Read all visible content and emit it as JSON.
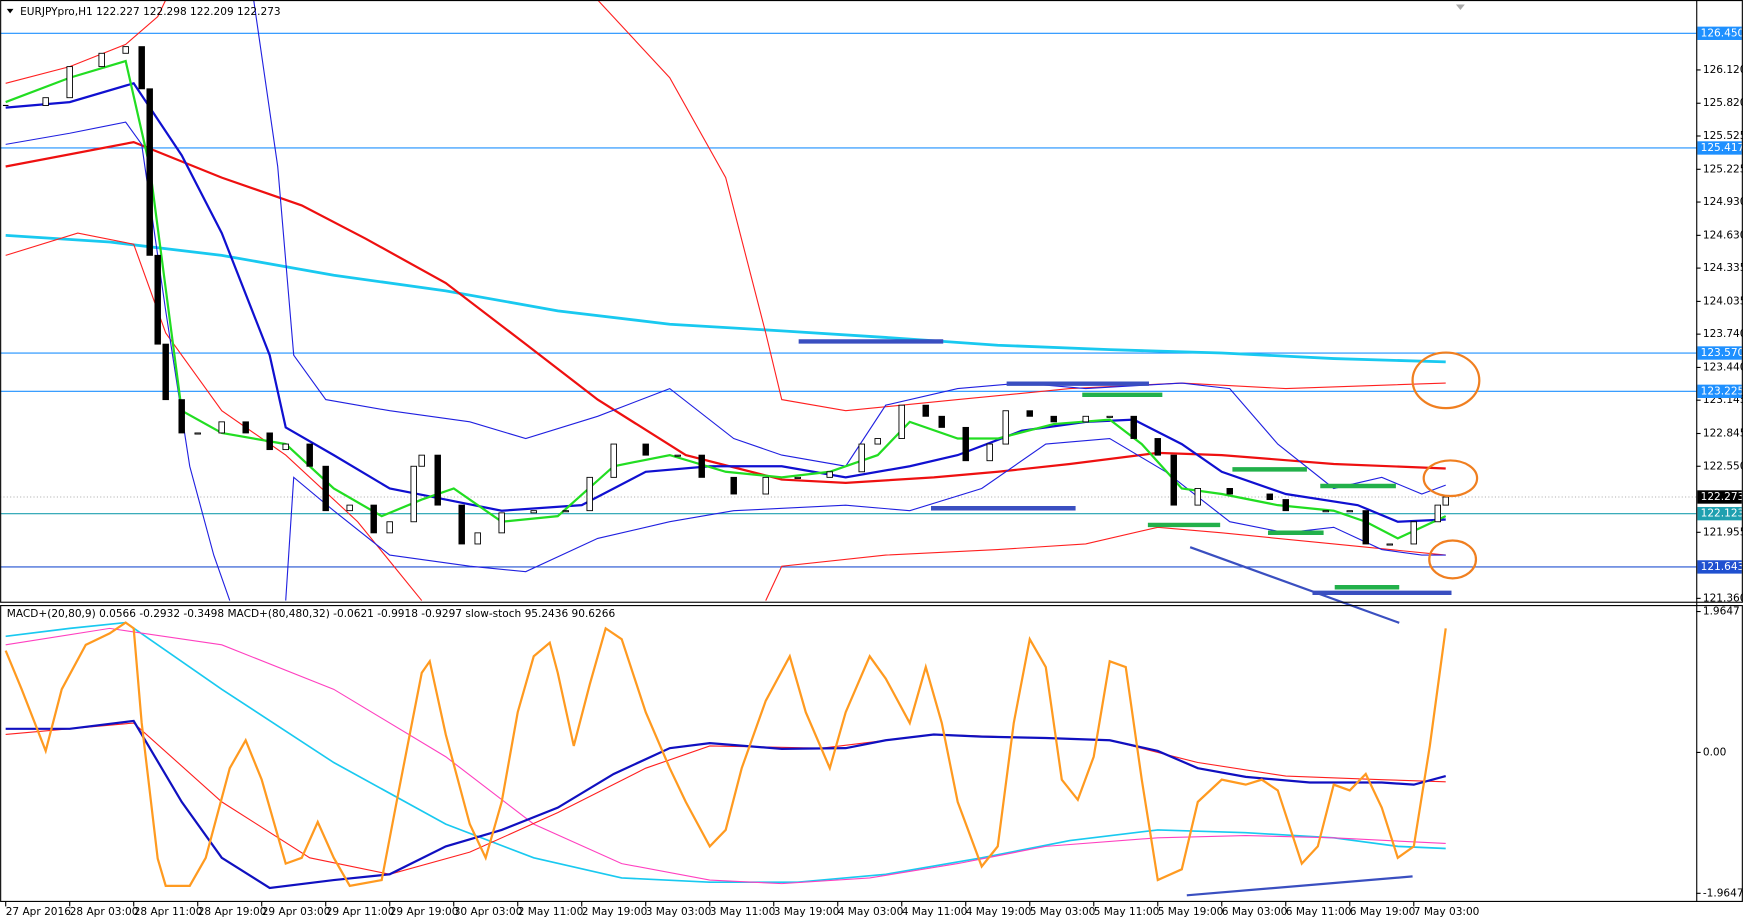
{
  "header": {
    "symbol": "EURJPYpro,H1  122.227 122.298 122.209 122.273"
  },
  "chart_data": [
    {
      "type": "price",
      "xlim": [
        -0.7,
        211.3
      ],
      "ylim": [
        121.33,
        126.75
      ],
      "yticks": [
        {
          "value": 126.12,
          "label": "126.120"
        },
        {
          "value": 125.82,
          "label": "125.820"
        },
        125.525,
        125.225,
        {
          "value": 124.93,
          "label": "124.930"
        },
        {
          "value": 124.63,
          "label": "124.630"
        },
        124.335,
        124.035,
        {
          "value": 123.74,
          "label": "123.740"
        },
        {
          "value": 123.44,
          "label": "123.440"
        },
        123.145,
        122.845,
        {
          "value": 122.55,
          "label": "122.550"
        },
        121.955,
        {
          "value": 121.36,
          "label": "121.360"
        }
      ],
      "levels": [
        {
          "value": 126.45,
          "label": "126.450",
          "color": "#1e90ff"
        },
        {
          "value": 125.417,
          "label": "125.417",
          "color": "#1e90ff"
        },
        {
          "value": 123.57,
          "label": "123.570",
          "color": "#1e90ff"
        },
        {
          "value": 123.225,
          "label": "123.225",
          "color": "#1e90ff"
        },
        {
          "value": 122.123,
          "label": "122.123",
          "color": "#1fa0b0"
        },
        {
          "value": 121.643,
          "label": "121.643",
          "color": "#2050d0"
        }
      ],
      "current": {
        "value": 122.273,
        "label": "122.273"
      },
      "x": [
        0,
        5,
        8,
        12,
        15,
        17,
        18,
        19,
        20,
        22,
        24,
        27,
        30,
        33,
        35,
        38,
        40,
        43,
        46,
        48,
        51,
        52,
        54,
        57,
        59,
        62,
        66,
        70,
        73,
        76,
        80,
        84,
        87,
        91,
        95,
        99,
        103,
        107,
        109,
        112,
        115,
        117,
        120,
        123,
        125,
        128,
        131,
        135,
        138,
        141,
        144,
        146,
        149,
        153,
        158,
        160,
        165,
        168,
        170,
        173,
        176,
        179,
        180
      ],
      "closes": [
        125.8,
        125.87,
        126.15,
        126.27,
        126.33,
        125.95,
        124.45,
        123.65,
        123.15,
        122.85,
        122.85,
        122.95,
        122.85,
        122.7,
        122.75,
        122.55,
        122.15,
        122.2,
        121.95,
        122.05,
        122.55,
        122.65,
        122.2,
        121.85,
        121.95,
        122.13,
        122.15,
        122.15,
        122.45,
        122.75,
        122.65,
        122.65,
        122.45,
        122.3,
        122.45,
        122.45,
        122.5,
        122.75,
        122.8,
        123.1,
        123.0,
        122.9,
        122.6,
        122.75,
        123.05,
        123.0,
        122.95,
        123.0,
        123.0,
        122.8,
        122.65,
        122.2,
        122.35,
        122.3,
        122.25,
        122.15,
        122.15,
        122.15,
        121.85,
        121.85,
        122.05,
        122.2,
        122.273
      ],
      "series": [
        {
          "color": "#19c9f0",
          "width": 2.5,
          "x": [
            0,
            13,
            27,
            41,
            55,
            69,
            83,
            97,
            110,
            124,
            138,
            152,
            166,
            180
          ],
          "values": [
            124.63,
            124.57,
            124.45,
            124.27,
            124.13,
            123.95,
            123.83,
            123.77,
            123.71,
            123.64,
            123.6,
            123.57,
            123.52,
            123.49
          ]
        },
        {
          "color": "#ee1010",
          "width": 2,
          "x": [
            0,
            16,
            27,
            37,
            45,
            55,
            65,
            74,
            85,
            97,
            105,
            116,
            124,
            133,
            144,
            152,
            166,
            180
          ],
          "values": [
            125.25,
            125.47,
            125.15,
            124.9,
            124.6,
            124.2,
            123.65,
            123.15,
            122.65,
            122.43,
            122.4,
            122.45,
            122.5,
            122.57,
            122.67,
            122.65,
            122.57,
            122.53
          ]
        },
        {
          "color": "#ff2020",
          "width": 1,
          "x": [
            0,
            8,
            15,
            19,
            20,
            40,
            74,
            83,
            90,
            95,
            97,
            105,
            119,
            133,
            147,
            160,
            180
          ],
          "values": [
            126.0,
            126.15,
            126.35,
            126.6,
            126.75,
            null,
            126.75,
            126.05,
            125.15,
            123.75,
            123.15,
            123.05,
            123.15,
            123.25,
            123.3,
            123.25,
            123.3
          ]
        },
        {
          "color": "#ff2020",
          "width": 1,
          "x": [
            0,
            9,
            16,
            20,
            27,
            35,
            44,
            52,
            70,
            95,
            97,
            110,
            124,
            135,
            144,
            152,
            166,
            180
          ],
          "values": [
            124.45,
            124.65,
            124.55,
            123.75,
            123.05,
            122.65,
            122.05,
            121.34,
            null,
            121.34,
            121.65,
            121.75,
            121.8,
            121.85,
            122.0,
            121.95,
            121.85,
            121.75
          ]
        },
        {
          "color": "#2020e0",
          "width": 1,
          "x": [
            31,
            34,
            36,
            40,
            48,
            58,
            65,
            74,
            83,
            91,
            97,
            105,
            110,
            119,
            127,
            135,
            147,
            153,
            159,
            166,
            172,
            177,
            180
          ],
          "values": [
            126.75,
            125.25,
            123.55,
            123.15,
            123.05,
            122.95,
            122.8,
            123.0,
            123.25,
            122.8,
            122.65,
            122.55,
            123.1,
            123.25,
            123.3,
            123.25,
            123.3,
            123.25,
            122.75,
            122.35,
            122.45,
            122.3,
            122.38
          ]
        },
        {
          "color": "#2020e0",
          "width": 1,
          "x": [
            0,
            8,
            15,
            17,
            20,
            23,
            26,
            28,
            31,
            35,
            36,
            41,
            48,
            58,
            65,
            74,
            83,
            91,
            105,
            113,
            122,
            130,
            138,
            145,
            153,
            160,
            166,
            172,
            177,
            180
          ],
          "values": [
            125.45,
            125.55,
            125.65,
            125.45,
            123.95,
            122.55,
            121.75,
            121.34,
            null,
            121.34,
            122.45,
            122.15,
            121.75,
            121.65,
            121.6,
            121.9,
            122.05,
            122.15,
            122.2,
            122.15,
            122.35,
            122.75,
            122.8,
            122.5,
            122.05,
            121.95,
            122.0,
            121.8,
            121.75,
            121.75
          ]
        },
        {
          "color": "#1010d0",
          "width": 2,
          "x": [
            0,
            8,
            16,
            22,
            27,
            33,
            35,
            41,
            48,
            55,
            62,
            72,
            80,
            88,
            97,
            105,
            113,
            119,
            127,
            135,
            141,
            147,
            152,
            160,
            169,
            174,
            180
          ],
          "values": [
            125.78,
            125.83,
            126.0,
            125.35,
            124.65,
            123.55,
            122.9,
            122.65,
            122.35,
            122.25,
            122.15,
            122.2,
            122.5,
            122.55,
            122.55,
            122.45,
            122.55,
            122.65,
            122.87,
            122.95,
            122.97,
            122.75,
            122.5,
            122.3,
            122.2,
            122.05,
            122.07
          ]
        },
        {
          "color": "#22dd22",
          "width": 2,
          "x": [
            0,
            8,
            15,
            18,
            22,
            27,
            35,
            41,
            47,
            52,
            56,
            62,
            69,
            76,
            83,
            90,
            97,
            103,
            109,
            113,
            119,
            124,
            131,
            138,
            142,
            147,
            152,
            159,
            166,
            170,
            174,
            180
          ],
          "values": [
            125.83,
            126.05,
            126.2,
            125.25,
            123.05,
            122.85,
            122.75,
            122.35,
            122.1,
            122.25,
            122.35,
            122.05,
            122.1,
            122.55,
            122.65,
            122.5,
            122.45,
            122.5,
            122.65,
            122.95,
            122.8,
            122.8,
            122.93,
            122.97,
            122.75,
            122.35,
            122.3,
            122.2,
            122.15,
            122.05,
            121.9,
            122.1
          ]
        }
      ]
    },
    {
      "type": "indicator",
      "title": "MACD+(20,80,9) 0.0566 -0.2932 -0.3498  MACD+(80,480,32) -0.0621 -0.9918 -0.9297  slow-stoch 95.2436 90.6266",
      "xlim": [
        -0.7,
        211.3
      ],
      "ylim": [
        -2.07,
        2.04
      ],
      "yticks": [
        1.9647,
        {
          "value": 0,
          "label": "0.00"
        },
        -1.9647
      ],
      "xticks": [
        {
          "value": 0,
          "label": "27 Apr 2016"
        },
        {
          "value": 8,
          "label": "28 Apr 03:00"
        },
        {
          "value": 16,
          "label": "28 Apr 11:00"
        },
        {
          "value": 24,
          "label": "28 Apr 19:00"
        },
        {
          "value": 32,
          "label": "29 Apr 03:00"
        },
        {
          "value": 40,
          "label": "29 Apr 11:00"
        },
        {
          "value": 48,
          "label": "29 Apr 19:00"
        },
        {
          "value": 56,
          "label": "30 Apr 03:00"
        },
        {
          "value": 64,
          "label": "2 May 11:00"
        },
        {
          "value": 72,
          "label": "2 May 19:00"
        },
        {
          "value": 80,
          "label": "3 May 03:00"
        },
        {
          "value": 88,
          "label": "3 May 11:00"
        },
        {
          "value": 96,
          "label": "3 May 19:00"
        },
        {
          "value": 104,
          "label": "4 May 03:00"
        },
        {
          "value": 112,
          "label": "4 May 11:00"
        },
        {
          "value": 120,
          "label": "4 May 19:00"
        },
        {
          "value": 128,
          "label": "5 May 03:00"
        },
        {
          "value": 136,
          "label": "5 May 11:00"
        },
        {
          "value": 144,
          "label": "5 May 19:00"
        },
        {
          "value": 152,
          "label": "6 May 03:00"
        },
        {
          "value": 160,
          "label": "6 May 11:00"
        },
        {
          "value": 168,
          "label": "6 May 19:00"
        },
        {
          "value": 176,
          "label": "7 May 03:00"
        }
      ],
      "series": [
        {
          "color": "#19c9f0",
          "width": 1.5,
          "x": [
            0,
            8,
            15,
            27,
            41,
            55,
            66,
            77,
            88,
            99,
            110,
            122,
            133,
            144,
            155,
            166,
            174,
            180
          ],
          "values": [
            1.62,
            1.73,
            1.81,
            0.88,
            -0.14,
            -1.0,
            -1.47,
            -1.75,
            -1.81,
            -1.81,
            -1.7,
            -1.47,
            -1.23,
            -1.08,
            -1.12,
            -1.19,
            -1.31,
            -1.34
          ]
        },
        {
          "color": "#ff40c0",
          "width": 1,
          "x": [
            0,
            13,
            27,
            41,
            55,
            66,
            77,
            88,
            97,
            108,
            119,
            130,
            144,
            155,
            166,
            180
          ],
          "values": [
            1.5,
            1.73,
            1.5,
            0.88,
            -0.06,
            -1.0,
            -1.55,
            -1.78,
            -1.83,
            -1.75,
            -1.55,
            -1.31,
            -1.19,
            -1.16,
            -1.19,
            -1.27
          ]
        },
        {
          "color": "#ff2020",
          "width": 1,
          "x": [
            0,
            16,
            27,
            38,
            48,
            58,
            69,
            80,
            88,
            102,
            116,
            138,
            149,
            160,
            172,
            180
          ],
          "values": [
            0.25,
            0.41,
            -0.69,
            -1.47,
            -1.7,
            -1.39,
            -0.84,
            -0.22,
            0.09,
            0.06,
            0.25,
            0.17,
            -0.14,
            -0.33,
            -0.38,
            -0.41
          ]
        },
        {
          "color": "#1010c0",
          "width": 2,
          "x": [
            0,
            8,
            16,
            22,
            27,
            33,
            41,
            48,
            55,
            62,
            69,
            76,
            83,
            88,
            97,
            105,
            110,
            116,
            122,
            130,
            138,
            144,
            149,
            155,
            163,
            172,
            176,
            180
          ],
          "values": [
            0.33,
            0.33,
            0.44,
            -0.69,
            -1.47,
            -1.89,
            -1.78,
            -1.7,
            -1.31,
            -1.08,
            -0.77,
            -0.3,
            0.06,
            0.13,
            0.05,
            0.06,
            0.17,
            0.25,
            0.22,
            0.2,
            0.17,
            0.02,
            -0.22,
            -0.34,
            -0.42,
            -0.42,
            -0.45,
            -0.33
          ]
        },
        {
          "color": "#ff9a20",
          "width": 2,
          "x": [
            0,
            2,
            5,
            7,
            10,
            13,
            15,
            16,
            17,
            19,
            20,
            23,
            25,
            28,
            30,
            32,
            35,
            37,
            39,
            41,
            43,
            47,
            49,
            52,
            53,
            55,
            58,
            60,
            62,
            64,
            66,
            68,
            69,
            71,
            73,
            75,
            77,
            80,
            83,
            85,
            88,
            90,
            92,
            95,
            98,
            100,
            103,
            105,
            108,
            110,
            113,
            115,
            117,
            119,
            122,
            124,
            126,
            128,
            130,
            132,
            134,
            136,
            138,
            140,
            142,
            144,
            147,
            149,
            152,
            155,
            157,
            159,
            162,
            164,
            166,
            168,
            170,
            172,
            174,
            176,
            178,
            180
          ],
          "values": [
            1.42,
            0.88,
            0.02,
            0.88,
            1.5,
            1.66,
            1.81,
            1.73,
            0.41,
            -1.48,
            -1.86,
            -1.86,
            -1.47,
            -0.22,
            0.17,
            -0.38,
            -1.55,
            -1.47,
            -0.97,
            -1.47,
            -1.86,
            -1.78,
            -0.61,
            1.11,
            1.27,
            0.25,
            -1.0,
            -1.47,
            -0.69,
            0.56,
            1.34,
            1.53,
            1.11,
            0.09,
            0.95,
            1.73,
            1.58,
            0.56,
            -0.22,
            -0.69,
            -1.31,
            -1.08,
            -0.22,
            0.72,
            1.34,
            0.56,
            -0.22,
            0.56,
            1.34,
            1.03,
            0.41,
            1.19,
            0.41,
            -0.69,
            -1.59,
            -1.31,
            0.41,
            1.58,
            1.19,
            -0.38,
            -0.66,
            -0.06,
            1.27,
            1.19,
            -0.38,
            -1.78,
            -1.63,
            -0.69,
            -0.38,
            -0.45,
            -0.38,
            -0.53,
            -1.55,
            -1.31,
            -0.45,
            -0.53,
            -0.3,
            -0.77,
            -1.47,
            -1.31,
            0.09,
            1.73
          ]
        }
      ]
    }
  ]
}
